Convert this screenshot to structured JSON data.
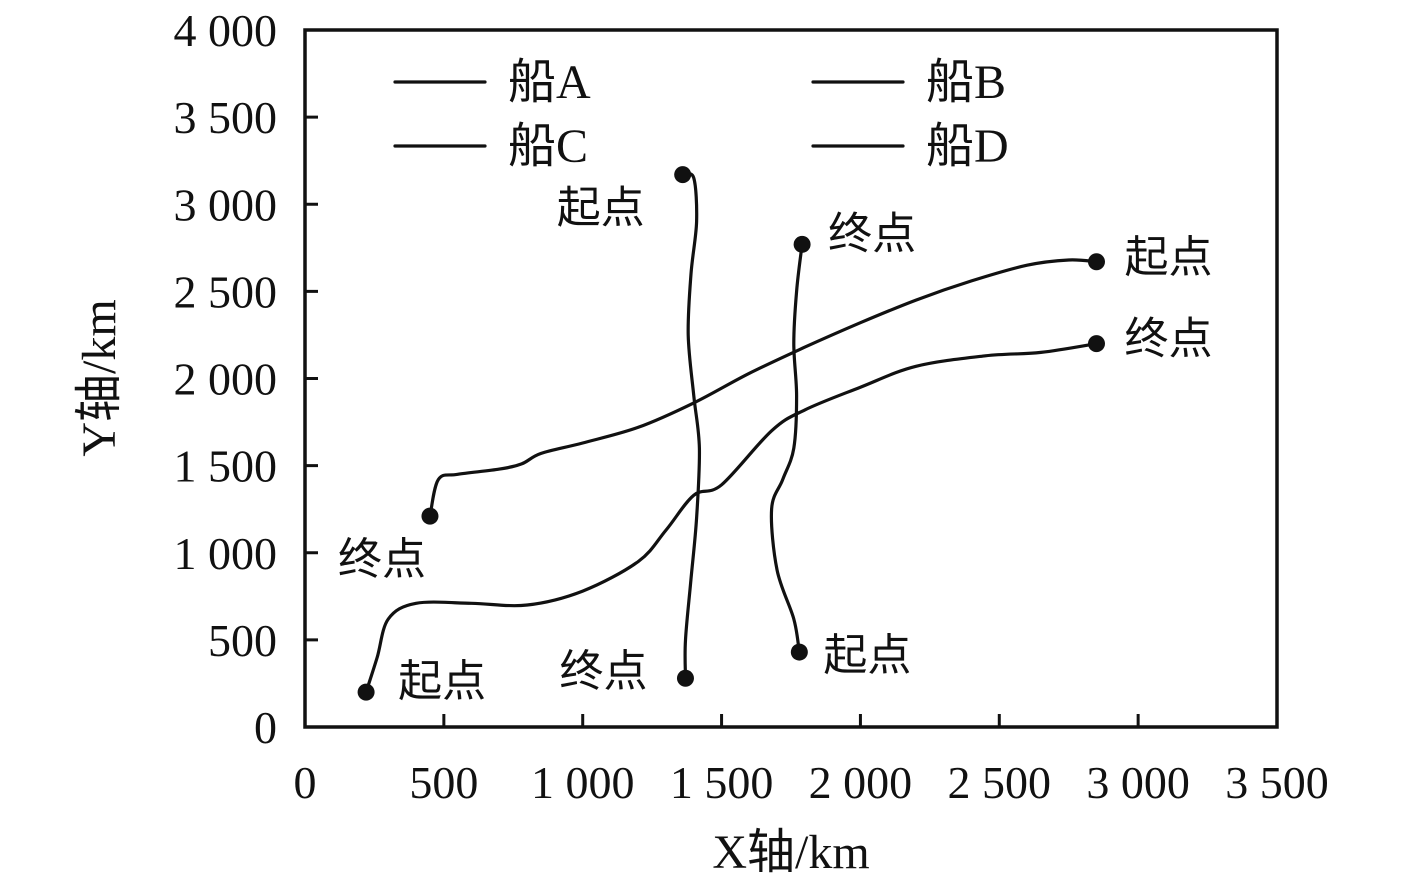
{
  "chart_data": {
    "type": "line",
    "title": "",
    "xlabel": "X轴/km",
    "ylabel": "Y轴/km",
    "xlim": [
      0,
      3500
    ],
    "ylim": [
      0,
      4000
    ],
    "x_ticks": [
      0,
      500,
      1000,
      1500,
      2000,
      2500,
      3000,
      3500
    ],
    "x_tick_labels": [
      "0",
      "500",
      "1 000",
      "1 500",
      "2 000",
      "2 500",
      "3 000",
      "3 500"
    ],
    "y_ticks": [
      0,
      500,
      1000,
      1500,
      2000,
      2500,
      3000,
      3500,
      4000
    ],
    "y_tick_labels": [
      "0",
      "500",
      "1 000",
      "1 500",
      "2 000",
      "2 500",
      "3 000",
      "3 500",
      "4 000"
    ],
    "legend": [
      "船A",
      "船B",
      "船C",
      "船D"
    ],
    "legend_position": "top",
    "series": [
      {
        "name": "船A",
        "points": [
          [
            2850,
            2670
          ],
          [
            2750,
            2680
          ],
          [
            2600,
            2650
          ],
          [
            2400,
            2560
          ],
          [
            2200,
            2450
          ],
          [
            2000,
            2320
          ],
          [
            1800,
            2180
          ],
          [
            1600,
            2030
          ],
          [
            1400,
            1860
          ],
          [
            1200,
            1720
          ],
          [
            1000,
            1630
          ],
          [
            850,
            1570
          ],
          [
            780,
            1510
          ],
          [
            700,
            1480
          ],
          [
            550,
            1450
          ],
          [
            480,
            1420
          ],
          [
            450,
            1210
          ]
        ],
        "start": {
          "x": 2850,
          "y": 2670,
          "label": "起点"
        },
        "end": {
          "x": 450,
          "y": 1210,
          "label": "终点"
        }
      },
      {
        "name": "船B",
        "points": [
          [
            220,
            200
          ],
          [
            260,
            400
          ],
          [
            300,
            620
          ],
          [
            400,
            710
          ],
          [
            600,
            710
          ],
          [
            800,
            700
          ],
          [
            1000,
            780
          ],
          [
            1200,
            950
          ],
          [
            1300,
            1130
          ],
          [
            1400,
            1330
          ],
          [
            1500,
            1390
          ],
          [
            1680,
            1700
          ],
          [
            1800,
            1820
          ],
          [
            2000,
            1950
          ],
          [
            2200,
            2070
          ],
          [
            2450,
            2130
          ],
          [
            2650,
            2150
          ],
          [
            2850,
            2200
          ]
        ],
        "start": {
          "x": 220,
          "y": 200,
          "label": "起点"
        },
        "end": {
          "x": 2850,
          "y": 2200,
          "label": "终点"
        }
      },
      {
        "name": "船C",
        "points": [
          [
            1360,
            3170
          ],
          [
            1400,
            3150
          ],
          [
            1410,
            2900
          ],
          [
            1390,
            2600
          ],
          [
            1380,
            2250
          ],
          [
            1400,
            1900
          ],
          [
            1420,
            1600
          ],
          [
            1410,
            1200
          ],
          [
            1390,
            850
          ],
          [
            1370,
            500
          ],
          [
            1370,
            280
          ]
        ],
        "start": {
          "x": 1360,
          "y": 3170,
          "label": "起点"
        },
        "end": {
          "x": 1370,
          "y": 280,
          "label": "终点"
        }
      },
      {
        "name": "船D",
        "points": [
          [
            1780,
            430
          ],
          [
            1760,
            620
          ],
          [
            1700,
            900
          ],
          [
            1680,
            1250
          ],
          [
            1720,
            1420
          ],
          [
            1760,
            1600
          ],
          [
            1770,
            1900
          ],
          [
            1760,
            2200
          ],
          [
            1770,
            2500
          ],
          [
            1790,
            2770
          ]
        ],
        "start": {
          "x": 1780,
          "y": 430,
          "label": "起点"
        },
        "end": {
          "x": 1790,
          "y": 2770,
          "label": "终点"
        }
      }
    ]
  }
}
